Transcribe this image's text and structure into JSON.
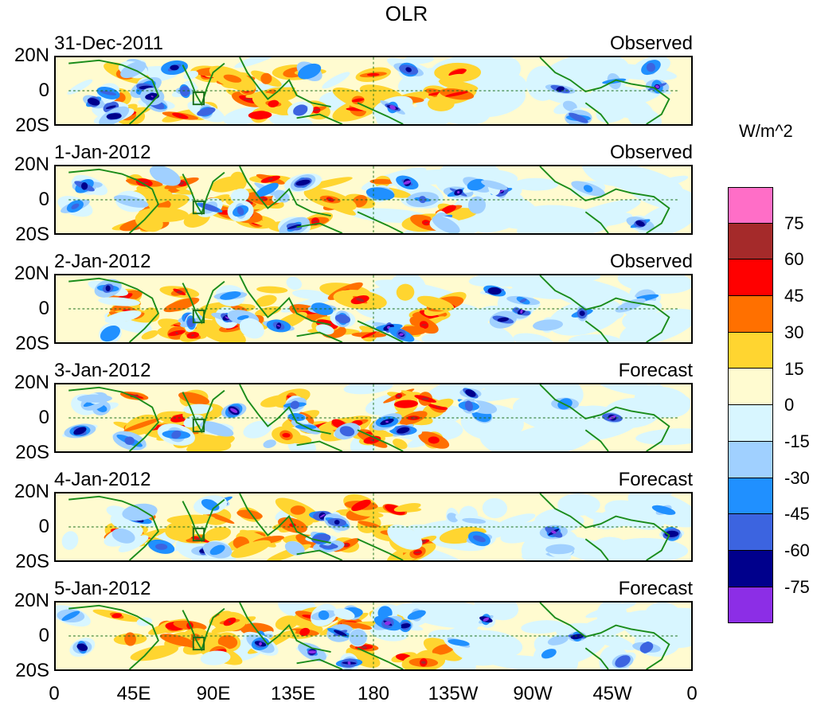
{
  "title": "OLR",
  "units": "W/m^2",
  "y_ticks": [
    "20N",
    "0",
    "20S"
  ],
  "x_ticks": [
    "0",
    "45E",
    "90E",
    "135E",
    "180",
    "135W",
    "90W",
    "45W",
    "0"
  ],
  "panels": [
    {
      "date": "31-Dec-2011",
      "kind": "Observed"
    },
    {
      "date": "1-Jan-2012",
      "kind": "Observed"
    },
    {
      "date": "2-Jan-2012",
      "kind": "Observed"
    },
    {
      "date": "3-Jan-2012",
      "kind": "Forecast"
    },
    {
      "date": "4-Jan-2012",
      "kind": "Forecast"
    },
    {
      "date": "5-Jan-2012",
      "kind": "Forecast"
    }
  ],
  "colorbar": {
    "colors": [
      "#ff6ec7",
      "#a52a2a",
      "#ff0000",
      "#ff7000",
      "#ffd530",
      "#fffbd0",
      "#d8f6ff",
      "#a0d0ff",
      "#2090ff",
      "#3c64e0",
      "#00008c",
      "#8c2ee6"
    ],
    "labels": [
      "75",
      "60",
      "45",
      "30",
      "15",
      "0",
      "-15",
      "-30",
      "-45",
      "-60",
      "-75"
    ]
  }
}
